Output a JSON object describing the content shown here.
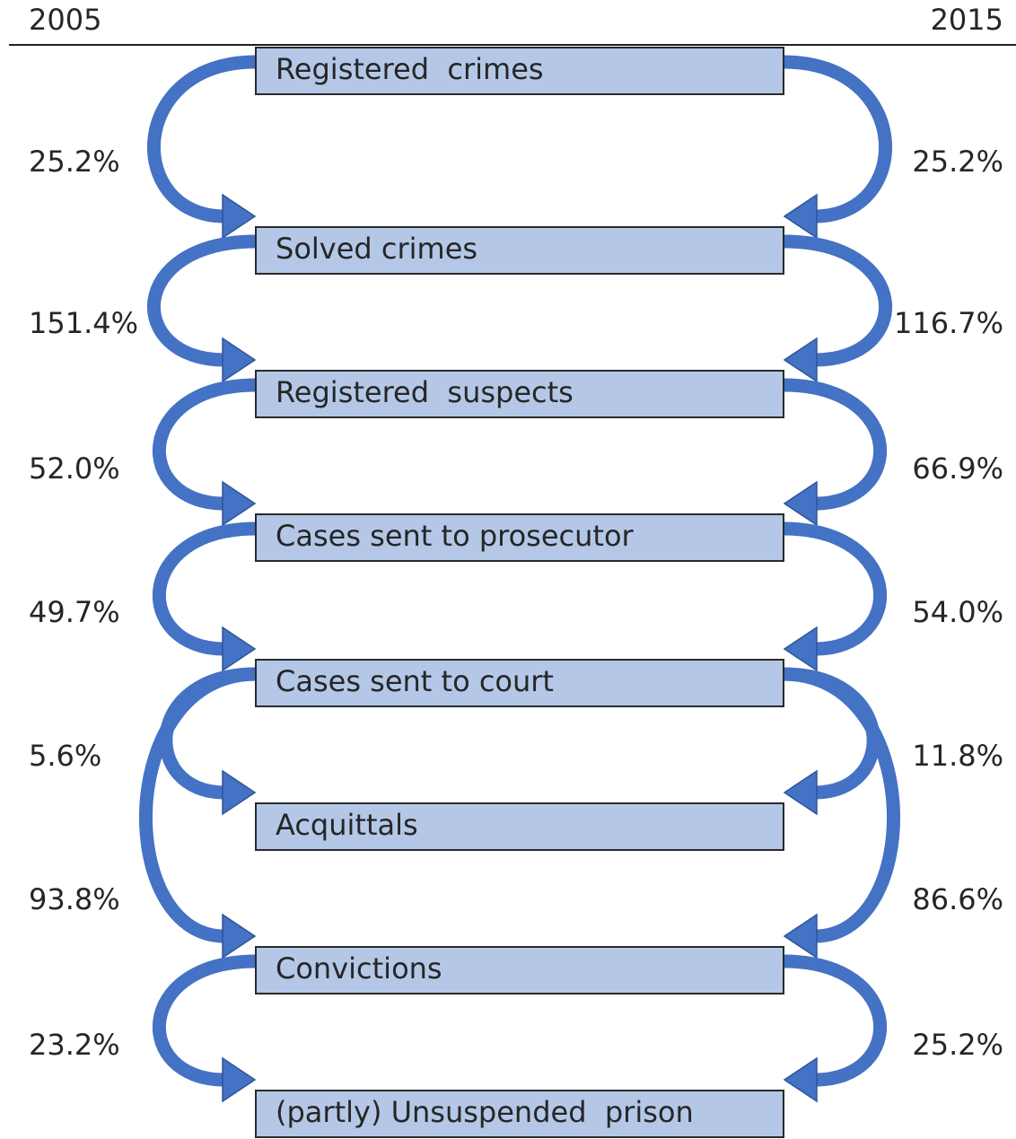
{
  "header": {
    "left_year": "2005",
    "right_year": "2015"
  },
  "nodes": [
    {
      "label": "Registered  crimes"
    },
    {
      "label": "Solved crimes"
    },
    {
      "label": "Registered  suspects"
    },
    {
      "label": "Cases sent to prosecutor"
    },
    {
      "label": "Cases sent to court"
    },
    {
      "label": "Acquittals"
    },
    {
      "label": "Convictions"
    },
    {
      "label": "(partly) Unsuspended  prison"
    }
  ],
  "left_rates": [
    "25.2%",
    "151.4%",
    "52.0%",
    "49.7%",
    "5.6%",
    "93.8%",
    "23.2%"
  ],
  "right_rates": [
    "25.2%",
    "116.7%",
    "66.9%",
    "54.0%",
    "11.8%",
    "86.6%",
    "25.2%"
  ]
}
